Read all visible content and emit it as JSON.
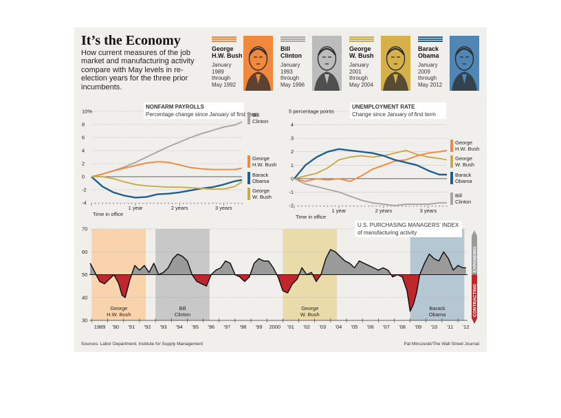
{
  "header": {
    "title": "It’s the Economy",
    "dek": "How current measures of the job market and manufacturing activity compare with May levels in re-election years for the three prior incumbents."
  },
  "presidents": [
    {
      "name_1": "George",
      "name_2": "H.W. Bush",
      "term": [
        "January",
        "1989",
        "through",
        "May 1992"
      ],
      "color": "#f0883e",
      "portrait_bg": "#f0883e"
    },
    {
      "name_1": "Bill",
      "name_2": "Clinton",
      "term": [
        "January",
        "1993",
        "through",
        "May 1996"
      ],
      "color": "#a6a6a6",
      "portrait_bg": "#bcbcbc"
    },
    {
      "name_1": "George",
      "name_2": "W. Bush",
      "term": [
        "January",
        "2001",
        "through",
        "May 2004"
      ],
      "color": "#c9a948",
      "portrait_bg": "#d6b04a"
    },
    {
      "name_1": "Barack",
      "name_2": "Obama",
      "term": [
        "January",
        "2009",
        "through",
        "May 2012"
      ],
      "color": "#1d5f8f",
      "portrait_bg": "#4f86b4"
    }
  ],
  "chart_data": [
    {
      "type": "line",
      "title": "NONFARM PAYROLLS",
      "subtitle": "Percentage change since January of first term",
      "ylim": [
        -4,
        10
      ],
      "y_ticks": [
        "10%",
        "8",
        "6",
        "4",
        "2",
        "0",
        "-2",
        "-4"
      ],
      "x_tick_labels": [
        "1 year",
        "2 years",
        "3 years"
      ],
      "x_axis_label": "Time in office",
      "series": [
        {
          "name": "Bill Clinton",
          "color": "#a6a6a6",
          "x": [
            0,
            3,
            6,
            9,
            12,
            15,
            18,
            21,
            24,
            27,
            30,
            33,
            36,
            39,
            41
          ],
          "y": [
            0,
            0.4,
            0.9,
            1.5,
            2.2,
            3.0,
            3.8,
            4.6,
            5.3,
            6.0,
            6.6,
            7.1,
            7.6,
            7.9,
            8.4
          ]
        },
        {
          "name": "George H.W. Bush",
          "color": "#f0883e",
          "x": [
            0,
            3,
            6,
            9,
            12,
            15,
            18,
            21,
            24,
            27,
            30,
            33,
            36,
            39,
            41
          ],
          "y": [
            0,
            0.4,
            0.9,
            1.3,
            1.7,
            2.1,
            2.3,
            2.2,
            1.8,
            1.4,
            1.2,
            1.1,
            1.1,
            1.1,
            1.3
          ]
        },
        {
          "name": "Barack Obama",
          "color": "#1d5f8f",
          "x": [
            0,
            3,
            6,
            9,
            12,
            15,
            18,
            21,
            24,
            27,
            30,
            33,
            36,
            39,
            41
          ],
          "y": [
            0,
            -1.5,
            -2.4,
            -2.9,
            -3.2,
            -3.1,
            -2.7,
            -2.6,
            -2.4,
            -2.1,
            -1.8,
            -1.6,
            -1.2,
            -0.7,
            -0.5
          ]
        },
        {
          "name": "George W. Bush",
          "color": "#c9a948",
          "x": [
            0,
            3,
            6,
            9,
            12,
            15,
            18,
            21,
            24,
            27,
            30,
            33,
            36,
            39,
            41
          ],
          "y": [
            0,
            0,
            -0.3,
            -0.8,
            -1.2,
            -1.4,
            -1.5,
            -1.6,
            -1.6,
            -1.7,
            -1.8,
            -1.9,
            -1.9,
            -1.5,
            -0.8
          ]
        }
      ],
      "legend": [
        {
          "label_1": "Bill",
          "label_2": "Clinton",
          "color": "#a6a6a6"
        },
        {
          "label_1": "George",
          "label_2": "H.W. Bush",
          "color": "#f0883e"
        },
        {
          "label_1": "Barack",
          "label_2": "Obama",
          "color": "#1d5f8f"
        },
        {
          "label_1": "George",
          "label_2": "W. Bush",
          "color": "#c9a948"
        }
      ]
    },
    {
      "type": "line",
      "title": "UNEMPLOYMENT RATE",
      "subtitle": "Change since January of first term",
      "ylim": [
        -2,
        5
      ],
      "y_ticks": [
        "5 percentage points",
        "4",
        "3",
        "2",
        "1",
        "0",
        "-1",
        "-2"
      ],
      "x_tick_labels": [
        "1 year",
        "2 years",
        "3 years"
      ],
      "x_axis_label": "Time in office",
      "series": [
        {
          "name": "George H.W. Bush",
          "color": "#f0883e",
          "x": [
            0,
            3,
            6,
            9,
            12,
            15,
            18,
            21,
            24,
            27,
            30,
            33,
            36,
            39,
            41
          ],
          "y": [
            0,
            -0.2,
            0,
            -0.1,
            0,
            -0.2,
            0.2,
            0.7,
            1.0,
            1.3,
            1.4,
            1.7,
            1.9,
            2.0,
            2.1
          ]
        },
        {
          "name": "George W. Bush",
          "color": "#c9a948",
          "x": [
            0,
            3,
            6,
            9,
            12,
            15,
            18,
            21,
            24,
            27,
            30,
            33,
            36,
            39,
            41
          ],
          "y": [
            0,
            0.2,
            0.4,
            0.8,
            1.4,
            1.6,
            1.7,
            1.6,
            1.7,
            1.9,
            2.1,
            1.8,
            1.6,
            1.5,
            1.4
          ]
        },
        {
          "name": "Barack Obama",
          "color": "#1d5f8f",
          "x": [
            0,
            3,
            6,
            9,
            12,
            15,
            18,
            21,
            24,
            27,
            30,
            33,
            36,
            39,
            41
          ],
          "y": [
            0,
            1.0,
            1.6,
            2.0,
            2.2,
            2.1,
            2.0,
            1.9,
            1.7,
            1.4,
            1.2,
            1.0,
            0.6,
            0.3,
            0.3
          ]
        },
        {
          "name": "Bill Clinton",
          "color": "#a6a6a6",
          "x": [
            0,
            3,
            6,
            9,
            12,
            15,
            18,
            21,
            24,
            27,
            30,
            33,
            36,
            39,
            41
          ],
          "y": [
            0,
            -0.4,
            -0.6,
            -0.8,
            -1.0,
            -1.3,
            -1.6,
            -1.8,
            -1.9,
            -2.0,
            -1.9,
            -1.9,
            -1.9,
            -1.8,
            -1.8
          ]
        }
      ],
      "legend": [
        {
          "label_1": "George",
          "label_2": "H.W. Bush",
          "color": "#f0883e"
        },
        {
          "label_1": "George",
          "label_2": "W. Bush",
          "color": "#c9a948"
        },
        {
          "label_1": "Barack",
          "label_2": "Obama",
          "color": "#1d5f8f"
        },
        {
          "label_1": "Bill",
          "label_2": "Clinton",
          "color": "#a6a6a6"
        }
      ]
    },
    {
      "type": "area",
      "title": "U.S. PURCHASING MANAGERS’ INDEX",
      "subtitle": "of manufacturing activity",
      "ylim": [
        30,
        70
      ],
      "y_ticks": [
        "70",
        "60",
        "50",
        "40",
        "30"
      ],
      "baseline": 50,
      "xlim": [
        1988.85,
        2012.6
      ],
      "x_tick_labels": [
        "1989",
        "'90",
        "'91",
        "'92",
        "'93",
        "'94",
        "'95",
        "'96",
        "'97",
        "'98",
        "'99",
        "2000",
        "'01",
        "'02",
        "'03",
        "'04",
        "'05",
        "'06",
        "'07",
        "'08",
        "'09",
        "'10",
        "'11",
        "'12"
      ],
      "side_labels": {
        "expanding": "EXPANDING",
        "contracting": "CONTRACTING"
      },
      "above_color": "#9a9a9a",
      "below_color": "#c0272d",
      "terms": [
        {
          "label_1": "George",
          "label_2": "H.W. Bush",
          "start": 1989.0,
          "end": 1992.4,
          "color": "#f9d3ab"
        },
        {
          "label_1": "Bill",
          "label_2": "Clinton",
          "start": 1993.0,
          "end": 1996.4,
          "color": "#c8c8c8"
        },
        {
          "label_1": "George",
          "label_2": "W. Bush",
          "start": 2001.0,
          "end": 2004.4,
          "color": "#e9dcaa"
        },
        {
          "label_1": "Barack",
          "label_2": "Obama",
          "start": 2009.0,
          "end": 2012.4,
          "color": "#b6c7d4"
        }
      ],
      "x": [
        1988.9,
        1989.2,
        1989.5,
        1989.8,
        1990.1,
        1990.4,
        1990.7,
        1990.9,
        1991.1,
        1991.4,
        1991.7,
        1992.0,
        1992.3,
        1992.6,
        1992.9,
        1993.2,
        1993.5,
        1993.8,
        1994.1,
        1994.4,
        1994.7,
        1995.0,
        1995.3,
        1995.6,
        1995.9,
        1996.2,
        1996.5,
        1996.8,
        1997.1,
        1997.4,
        1997.7,
        1998.0,
        1998.3,
        1998.6,
        1998.9,
        1999.2,
        1999.5,
        1999.8,
        2000.1,
        2000.4,
        2000.7,
        2001.0,
        2001.3,
        2001.6,
        2001.9,
        2002.2,
        2002.5,
        2002.8,
        2003.1,
        2003.4,
        2003.7,
        2004.0,
        2004.3,
        2004.6,
        2004.9,
        2005.2,
        2005.5,
        2005.8,
        2006.1,
        2006.4,
        2006.7,
        2007.0,
        2007.3,
        2007.6,
        2007.9,
        2008.2,
        2008.5,
        2008.8,
        2009.0,
        2009.2,
        2009.4,
        2009.6,
        2009.9,
        2010.2,
        2010.5,
        2010.8,
        2011.1,
        2011.4,
        2011.7,
        2012.0,
        2012.3,
        2012.5
      ],
      "y": [
        55,
        51,
        47,
        46,
        48,
        50,
        46,
        41,
        40,
        48,
        54,
        52,
        54,
        51,
        55,
        50,
        51,
        53,
        57,
        59,
        58,
        56,
        50,
        47,
        46,
        45,
        50,
        52,
        53,
        56,
        55,
        50,
        49,
        47,
        49,
        55,
        57,
        56,
        56,
        53,
        49,
        43,
        42,
        46,
        48,
        53,
        50,
        51,
        47,
        50,
        57,
        61,
        60,
        58,
        56,
        55,
        53,
        56,
        55,
        54,
        53,
        52,
        53,
        52,
        49,
        50,
        49,
        43,
        34,
        37,
        42,
        50,
        55,
        59,
        57,
        56,
        60,
        57,
        52,
        54,
        53,
        53
      ]
    }
  ],
  "footer": {
    "sources": "Sources: Labor Department; Institute for Supply Management",
    "credit": "Pat Minczeski/The Wall Street Journal"
  }
}
